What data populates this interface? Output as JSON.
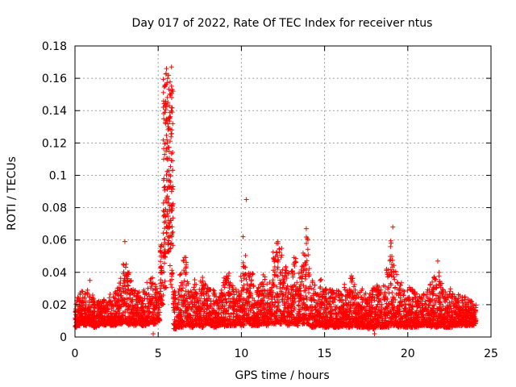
{
  "chart_data": {
    "type": "scatter",
    "title": "Day 017 of 2022, Rate Of TEC Index for receiver ntus",
    "xlabel": "GPS time / hours",
    "ylabel": "ROTI / TECUs",
    "xlim": [
      0,
      25
    ],
    "ylim": [
      0,
      0.18
    ],
    "xticks": [
      0,
      5,
      10,
      15,
      20,
      25
    ],
    "xtick_labels": [
      "0",
      "5",
      "10",
      "15",
      "20",
      "25"
    ],
    "yticks": [
      0,
      0.02,
      0.04,
      0.06,
      0.08,
      0.1,
      0.12,
      0.14,
      0.16,
      0.18
    ],
    "ytick_labels": [
      "0",
      "0.02",
      "0.04",
      "0.06",
      "0.08",
      "0.1",
      "0.12",
      "0.14",
      "0.16",
      "0.18"
    ],
    "grid": true,
    "marker": "plus",
    "marker_color": "#ff0000",
    "series": [
      {
        "x": [
          0.0,
          0.2,
          0.4,
          0.6,
          0.8,
          1.0,
          1.2,
          1.4,
          1.6,
          1.8,
          2.0,
          2.2,
          2.4,
          2.6,
          2.8,
          3.0,
          3.2,
          3.4,
          3.6,
          3.8,
          4.0,
          4.2,
          4.4,
          4.6,
          4.8,
          5.0,
          5.2,
          5.4,
          5.6,
          5.8,
          6.0,
          6.2,
          6.4,
          6.6,
          6.8,
          7.0,
          7.2,
          7.4,
          7.6,
          7.8,
          8.0,
          8.2,
          8.4,
          8.6,
          8.8,
          9.0,
          9.2,
          9.4,
          9.6,
          9.8,
          10.0,
          10.2,
          10.4,
          10.6,
          10.8,
          11.0,
          11.2,
          11.4,
          11.6,
          11.8,
          12.0,
          12.2,
          12.4,
          12.6,
          12.8,
          13.0,
          13.2,
          13.4,
          13.6,
          13.8,
          14.0,
          14.2,
          14.4,
          14.6,
          14.8,
          15.0,
          15.2,
          15.4,
          15.6,
          15.8,
          16.0,
          16.2,
          16.4,
          16.6,
          16.8,
          17.0,
          17.2,
          17.4,
          17.6,
          17.8,
          18.0,
          18.2,
          18.4,
          18.6,
          18.8,
          19.0,
          19.2,
          19.4,
          19.6,
          19.8,
          20.0,
          20.2,
          20.4,
          20.6,
          20.8,
          21.0,
          21.2,
          21.4,
          21.6,
          21.8,
          22.0,
          22.2,
          22.4,
          22.6,
          22.8,
          23.0,
          23.2,
          23.4,
          23.6,
          23.8,
          24.0
        ],
        "y_low": [
          0.006,
          0.007,
          0.008,
          0.007,
          0.008,
          0.007,
          0.006,
          0.007,
          0.008,
          0.007,
          0.008,
          0.007,
          0.007,
          0.008,
          0.008,
          0.009,
          0.007,
          0.008,
          0.007,
          0.008,
          0.007,
          0.007,
          0.008,
          0.009,
          0.008,
          0.01,
          0.02,
          0.03,
          0.05,
          0.03,
          0.005,
          0.006,
          0.006,
          0.007,
          0.007,
          0.006,
          0.007,
          0.007,
          0.006,
          0.007,
          0.008,
          0.007,
          0.006,
          0.007,
          0.007,
          0.006,
          0.007,
          0.007,
          0.007,
          0.008,
          0.007,
          0.007,
          0.008,
          0.007,
          0.007,
          0.007,
          0.008,
          0.008,
          0.007,
          0.008,
          0.008,
          0.009,
          0.008,
          0.008,
          0.007,
          0.008,
          0.008,
          0.007,
          0.008,
          0.008,
          0.008,
          0.006,
          0.006,
          0.007,
          0.007,
          0.006,
          0.006,
          0.007,
          0.006,
          0.006,
          0.006,
          0.007,
          0.006,
          0.006,
          0.007,
          0.006,
          0.006,
          0.006,
          0.005,
          0.006,
          0.005,
          0.006,
          0.006,
          0.006,
          0.006,
          0.007,
          0.007,
          0.006,
          0.006,
          0.006,
          0.006,
          0.006,
          0.006,
          0.006,
          0.007,
          0.007,
          0.007,
          0.006,
          0.006,
          0.006,
          0.006,
          0.006,
          0.006,
          0.006,
          0.007,
          0.007,
          0.007,
          0.007,
          0.007,
          0.007,
          0.007
        ],
        "y_high": [
          0.022,
          0.025,
          0.029,
          0.027,
          0.03,
          0.026,
          0.024,
          0.023,
          0.022,
          0.024,
          0.025,
          0.027,
          0.03,
          0.035,
          0.037,
          0.048,
          0.04,
          0.035,
          0.03,
          0.028,
          0.026,
          0.03,
          0.035,
          0.037,
          0.033,
          0.028,
          0.06,
          0.163,
          0.166,
          0.158,
          0.03,
          0.033,
          0.04,
          0.052,
          0.035,
          0.03,
          0.036,
          0.031,
          0.038,
          0.033,
          0.031,
          0.03,
          0.029,
          0.027,
          0.03,
          0.038,
          0.04,
          0.034,
          0.032,
          0.031,
          0.04,
          0.052,
          0.045,
          0.04,
          0.036,
          0.033,
          0.036,
          0.04,
          0.033,
          0.036,
          0.055,
          0.06,
          0.057,
          0.045,
          0.044,
          0.041,
          0.05,
          0.04,
          0.045,
          0.052,
          0.063,
          0.035,
          0.033,
          0.03,
          0.036,
          0.03,
          0.028,
          0.03,
          0.032,
          0.029,
          0.027,
          0.034,
          0.03,
          0.038,
          0.033,
          0.028,
          0.03,
          0.028,
          0.026,
          0.03,
          0.031,
          0.032,
          0.03,
          0.035,
          0.042,
          0.06,
          0.046,
          0.04,
          0.034,
          0.03,
          0.03,
          0.031,
          0.028,
          0.027,
          0.027,
          0.028,
          0.03,
          0.034,
          0.038,
          0.042,
          0.036,
          0.03,
          0.028,
          0.03,
          0.029,
          0.027,
          0.026,
          0.025,
          0.024,
          0.023,
          0.022
        ]
      }
    ],
    "outliers": [
      {
        "x": 10.3,
        "y": 0.085
      },
      {
        "x": 10.1,
        "y": 0.062
      },
      {
        "x": 19.1,
        "y": 0.068
      },
      {
        "x": 19.0,
        "y": 0.058
      },
      {
        "x": 3.0,
        "y": 0.059
      },
      {
        "x": 5.5,
        "y": 0.166
      },
      {
        "x": 5.8,
        "y": 0.167
      },
      {
        "x": 13.9,
        "y": 0.067
      },
      {
        "x": 21.8,
        "y": 0.047
      },
      {
        "x": 18.0,
        "y": 0.002
      },
      {
        "x": 4.7,
        "y": 0.002
      },
      {
        "x": 0.9,
        "y": 0.035
      }
    ]
  }
}
